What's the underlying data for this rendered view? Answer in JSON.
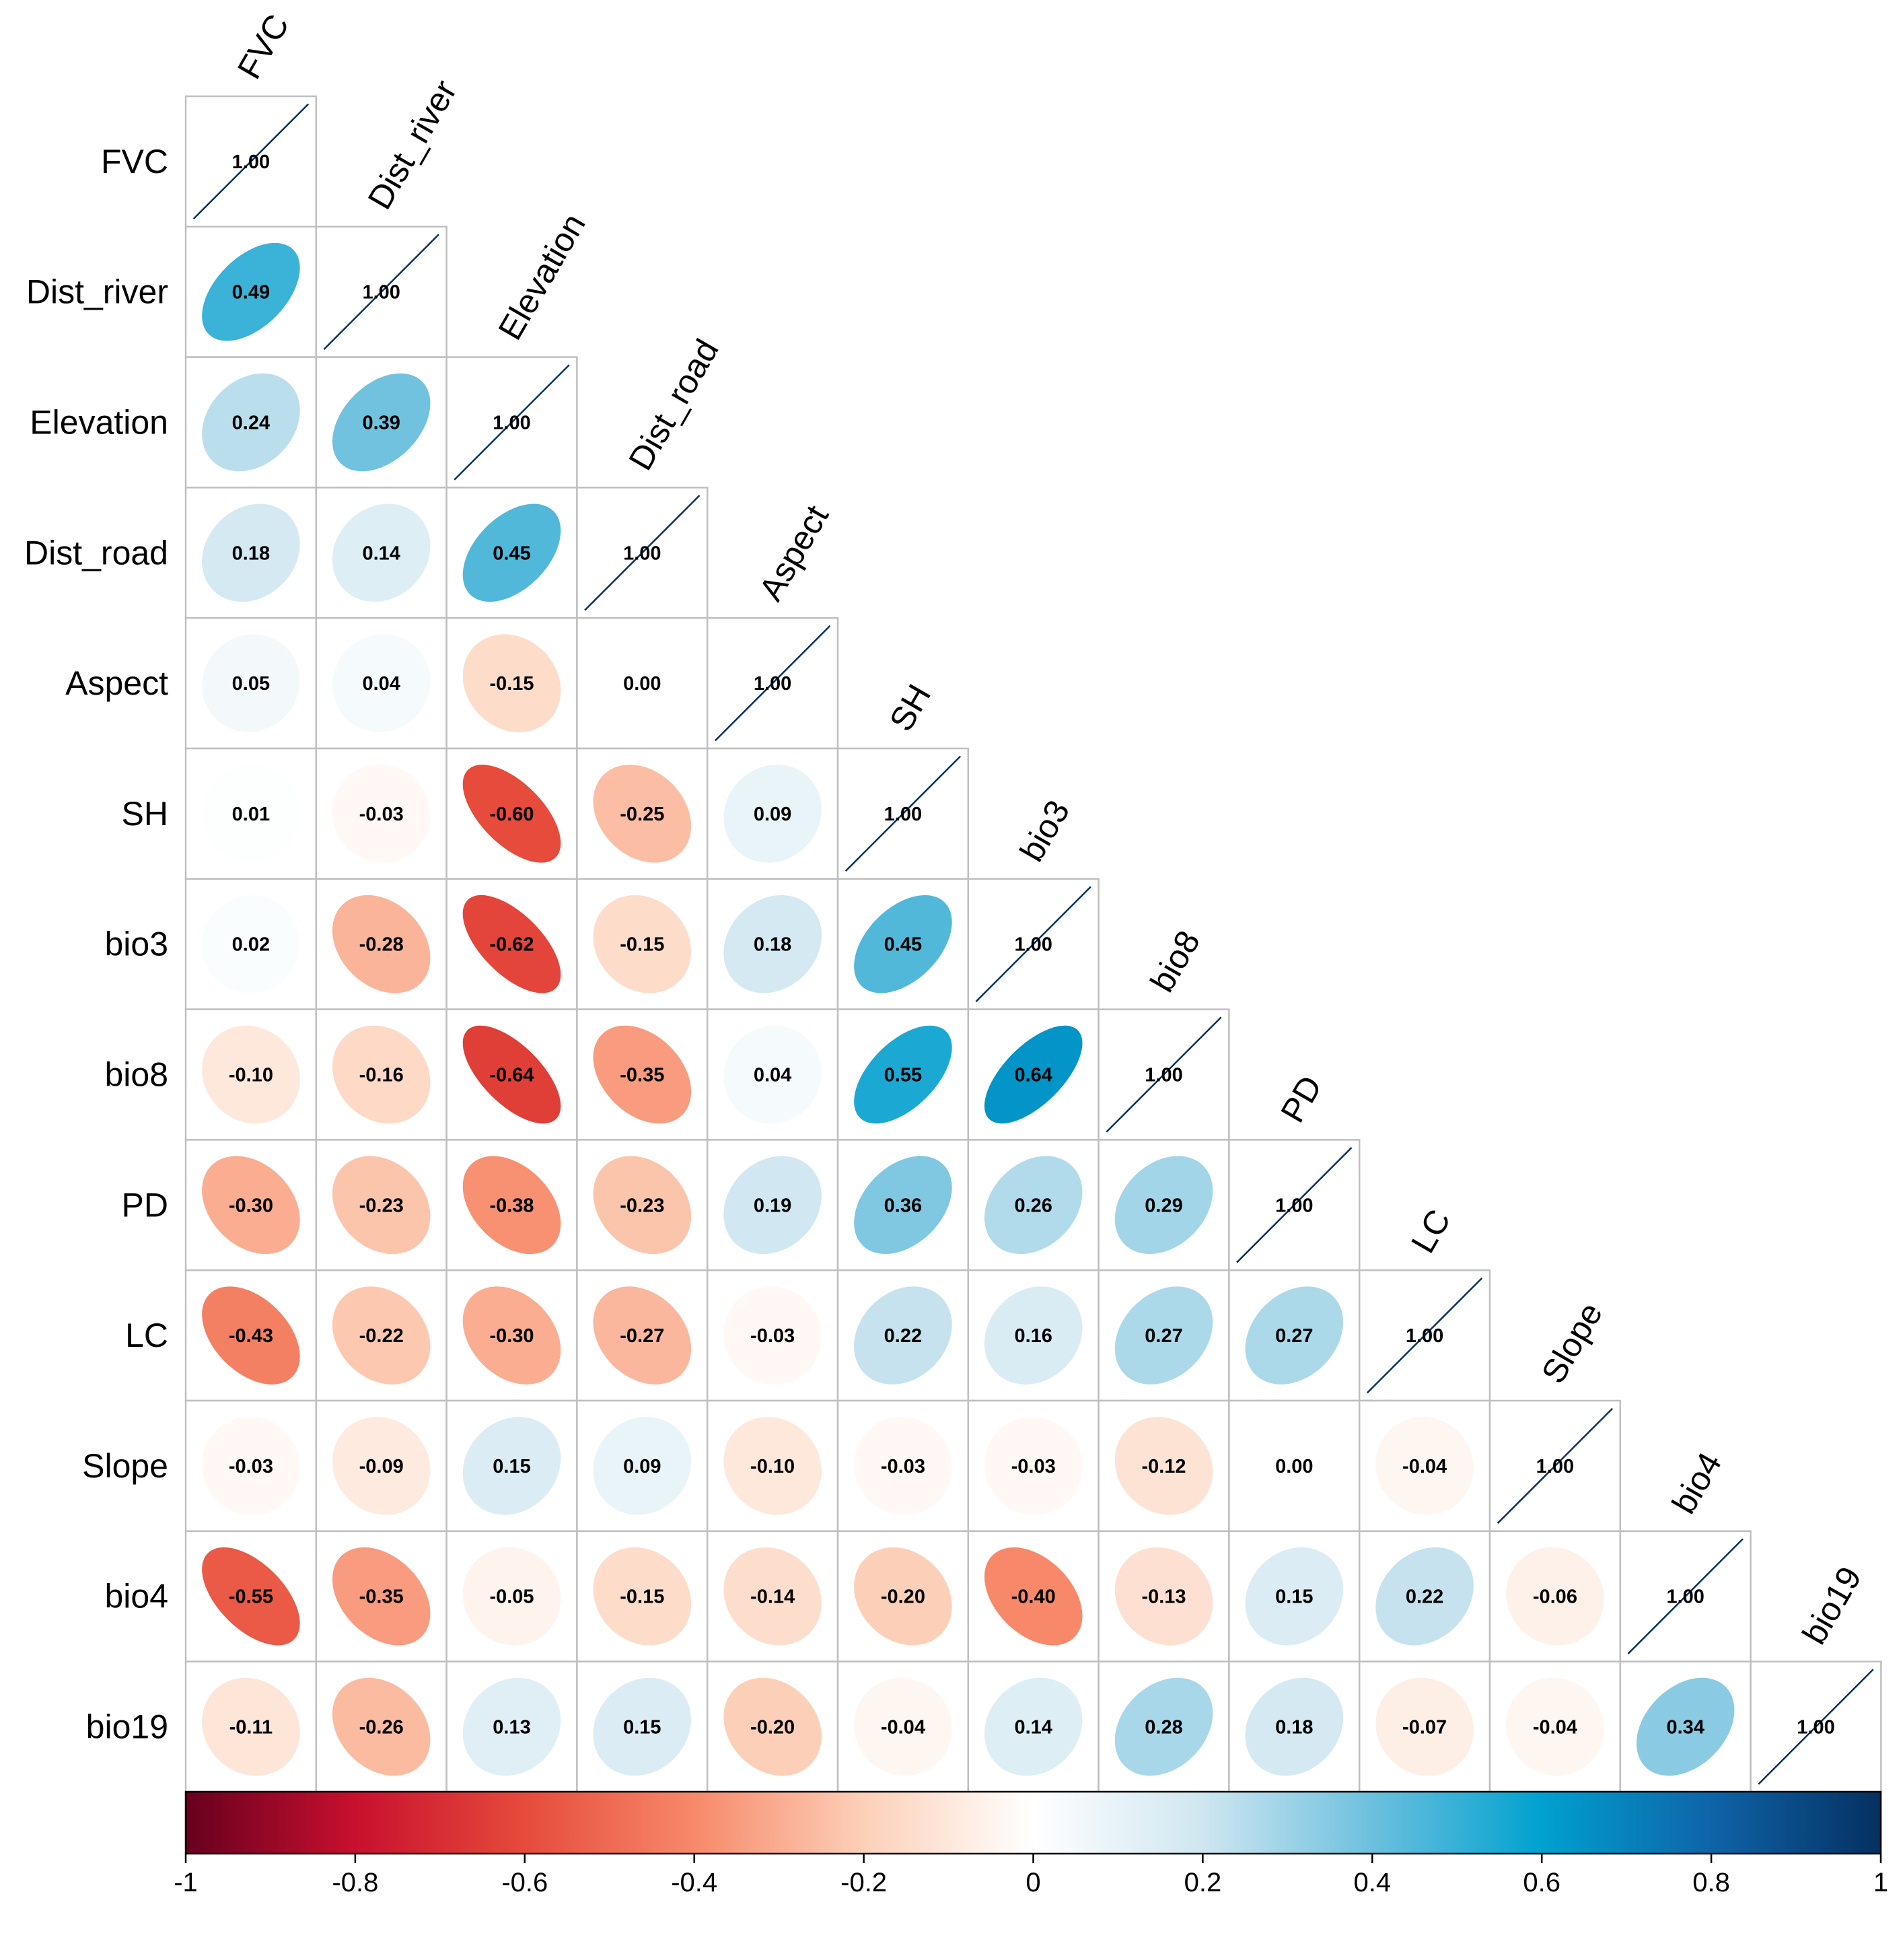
{
  "chart_data": {
    "type": "heatmap",
    "subtype": "correlation-matrix-lower-triangle",
    "variables": [
      "FVC",
      "Dist_river",
      "Elevation",
      "Dist_road",
      "Aspect",
      "SH",
      "bio3",
      "bio8",
      "PD",
      "LC",
      "Slope",
      "bio4",
      "bio19"
    ],
    "matrix": [
      [
        1.0
      ],
      [
        0.49,
        1.0
      ],
      [
        0.24,
        0.39,
        1.0
      ],
      [
        0.18,
        0.14,
        0.45,
        1.0
      ],
      [
        0.05,
        0.04,
        -0.15,
        0.0,
        1.0
      ],
      [
        0.01,
        -0.03,
        -0.6,
        -0.25,
        0.09,
        1.0
      ],
      [
        0.02,
        -0.28,
        -0.62,
        -0.15,
        0.18,
        0.45,
        1.0
      ],
      [
        -0.1,
        -0.16,
        -0.64,
        -0.35,
        0.04,
        0.55,
        0.64,
        1.0
      ],
      [
        -0.3,
        -0.23,
        -0.38,
        -0.23,
        0.19,
        0.36,
        0.26,
        0.29,
        1.0
      ],
      [
        -0.43,
        -0.22,
        -0.3,
        -0.27,
        -0.03,
        0.22,
        0.16,
        0.27,
        0.27,
        1.0
      ],
      [
        -0.03,
        -0.09,
        0.15,
        0.09,
        -0.1,
        -0.03,
        -0.03,
        -0.12,
        0.0,
        -0.04,
        1.0
      ],
      [
        -0.55,
        -0.35,
        -0.05,
        -0.15,
        -0.14,
        -0.2,
        -0.4,
        -0.13,
        0.15,
        0.22,
        -0.06,
        1.0
      ],
      [
        -0.11,
        -0.26,
        0.13,
        0.15,
        -0.2,
        -0.04,
        0.14,
        0.28,
        0.18,
        -0.07,
        -0.04,
        0.34,
        1.0
      ]
    ],
    "labels": [
      [
        "1.00"
      ],
      [
        "0.49",
        "1.00"
      ],
      [
        "0.24",
        "0.39",
        "1.00"
      ],
      [
        "0.18",
        "0.14",
        "0.45",
        "1.00"
      ],
      [
        "0.05",
        "0.04",
        "-0.15",
        "0.00",
        "1.00"
      ],
      [
        "0.01",
        "-0.03",
        "-0.60",
        "-0.25",
        "0.09",
        "1.00"
      ],
      [
        "0.02",
        "-0.28",
        "-0.62",
        "-0.15",
        "0.18",
        "0.45",
        "1.00"
      ],
      [
        "-0.10",
        "-0.16",
        "-0.64",
        "-0.35",
        "0.04",
        "0.55",
        "0.64",
        "1.00"
      ],
      [
        "-0.30",
        "-0.23",
        "-0.38",
        "-0.23",
        "0.19",
        "0.36",
        "0.26",
        "0.29",
        "1.00"
      ],
      [
        "-0.43",
        "-0.22",
        "-0.30",
        "-0.27",
        "-0.03",
        "0.22",
        "0.16",
        "0.27",
        "0.27",
        "1.00"
      ],
      [
        "-0.03",
        "-0.09",
        "0.15",
        "0.09",
        "-0.10",
        "-0.03",
        "-0.03",
        "-0.12",
        "0.00",
        "-0.04",
        "1.00"
      ],
      [
        "-0.55",
        "-0.35",
        "-0.05",
        "-0.15",
        "-0.14",
        "-0.20",
        "-0.40",
        "-0.13",
        "0.15",
        "0.22",
        "-0.06",
        "1.00"
      ],
      [
        "-0.11",
        "-0.26",
        "0.13",
        "0.15",
        "-0.20",
        "-0.04",
        "0.14",
        "0.28",
        "0.18",
        "-0.07",
        "-0.04",
        "0.34",
        "1.00"
      ]
    ],
    "colorbar": {
      "range": [
        -1,
        1
      ],
      "ticks": [
        "-1",
        "-0.8",
        "-0.6",
        "-0.4",
        "-0.2",
        "0",
        "0.2",
        "0.4",
        "0.6",
        "0.8",
        "1"
      ],
      "placement": "bottom",
      "stops": [
        {
          "v": -1.0,
          "color": "#67001f"
        },
        {
          "v": -0.8,
          "color": "#c8102e"
        },
        {
          "v": -0.6,
          "color": "#e64b3b"
        },
        {
          "v": -0.4,
          "color": "#f7896a"
        },
        {
          "v": -0.2,
          "color": "#fcd0b8"
        },
        {
          "v": 0.0,
          "color": "#ffffff"
        },
        {
          "v": 0.2,
          "color": "#cfe6f0"
        },
        {
          "v": 0.4,
          "color": "#6cc0de"
        },
        {
          "v": 0.6,
          "color": "#00a1cf"
        },
        {
          "v": 0.8,
          "color": "#0f64a8"
        },
        {
          "v": 1.0,
          "color": "#053061"
        }
      ]
    },
    "diagonal_style": "line",
    "title": "",
    "xlabel": "",
    "ylabel": ""
  },
  "style": {
    "grid_color": "#bfbfbf",
    "diag_line_color": "#053061"
  }
}
